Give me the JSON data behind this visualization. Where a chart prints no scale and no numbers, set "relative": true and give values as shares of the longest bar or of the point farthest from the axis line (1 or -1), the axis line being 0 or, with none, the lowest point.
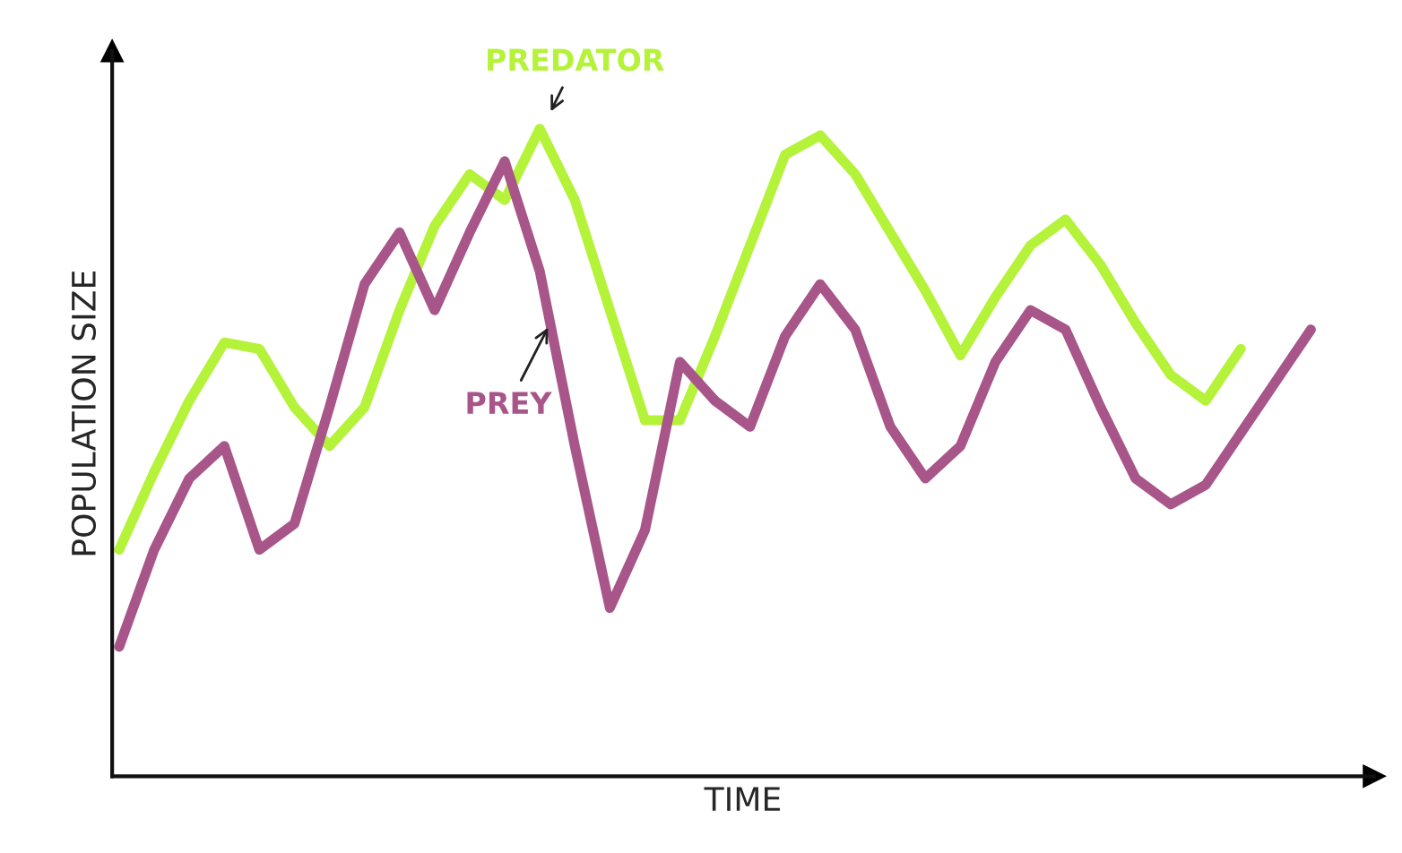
{
  "chart_data": {
    "type": "line",
    "relative": true,
    "xlabel": "TIME",
    "ylabel": "POPULATION SIZE",
    "legend": false,
    "marker": "none",
    "line_style": "solid",
    "categories": [
      null,
      null,
      null,
      null,
      null,
      null,
      null,
      null,
      null,
      null,
      null,
      null,
      null,
      null,
      null,
      null,
      null,
      null,
      null,
      null,
      null,
      null,
      null,
      null,
      null,
      null,
      null,
      null,
      null,
      null,
      null,
      null,
      null,
      null,
      null
    ],
    "series": [
      {
        "name": "PREDATOR",
        "color": "#b5f23a",
        "values": [
          0.35,
          0.47,
          0.58,
          0.67,
          0.66,
          0.57,
          0.51,
          0.57,
          0.72,
          0.85,
          0.93,
          0.89,
          1.0,
          0.89,
          0.72,
          0.55,
          0.55,
          0.68,
          0.82,
          0.96,
          0.99,
          0.93,
          0.84,
          0.75,
          0.65,
          0.74,
          0.82,
          0.86,
          0.79,
          0.7,
          0.62,
          0.58,
          0.66,
          null,
          null
        ]
      },
      {
        "name": "PREY",
        "color": "#a8558a",
        "values": [
          0.2,
          0.35,
          0.46,
          0.51,
          0.35,
          0.39,
          0.57,
          0.76,
          0.84,
          0.72,
          0.84,
          0.95,
          0.78,
          0.51,
          0.26,
          0.38,
          0.64,
          0.58,
          0.54,
          0.68,
          0.76,
          0.69,
          0.54,
          0.46,
          0.51,
          0.64,
          0.72,
          0.69,
          0.57,
          0.46,
          0.42,
          0.45,
          0.53,
          0.61,
          0.69
        ]
      }
    ]
  }
}
